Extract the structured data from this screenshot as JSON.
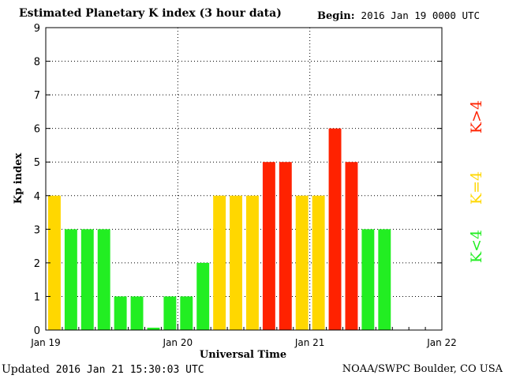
{
  "header": {
    "title": "Estimated Planetary K index (3 hour data)",
    "begin_label": "Begin:",
    "begin_value": "2016 Jan 19 0000 UTC"
  },
  "footer": {
    "updated_label": "Updated",
    "updated_value": "2016 Jan 21 15:30:03 UTC",
    "credit": "NOAA/SWPC Boulder, CO USA"
  },
  "colors": {
    "low": "#22ee22",
    "mid": "#ffd700",
    "high": "#ff2200"
  },
  "chart_data": {
    "type": "bar",
    "title": "Estimated Planetary K index (3 hour data)",
    "xlabel": "Universal Time",
    "ylabel": "Kp index",
    "ylim": [
      0,
      9
    ],
    "yticks": [
      0,
      1,
      2,
      3,
      4,
      5,
      6,
      7,
      8,
      9
    ],
    "x_tick_labels": [
      "Jan 19",
      "Jan 20",
      "Jan 21",
      "Jan 22"
    ],
    "bins_per_day": 8,
    "total_bins": 24,
    "values": [
      4,
      3,
      3,
      3,
      1,
      1,
      0.07,
      1,
      1,
      2,
      4,
      4,
      4,
      5,
      5,
      4,
      4,
      6,
      5,
      3,
      3
    ],
    "grid": "dotted",
    "legend": [
      {
        "label": "K<4",
        "color": "#22ee22"
      },
      {
        "label": "K=4",
        "color": "#ffd700"
      },
      {
        "label": "K>4",
        "color": "#ff2200"
      }
    ]
  }
}
